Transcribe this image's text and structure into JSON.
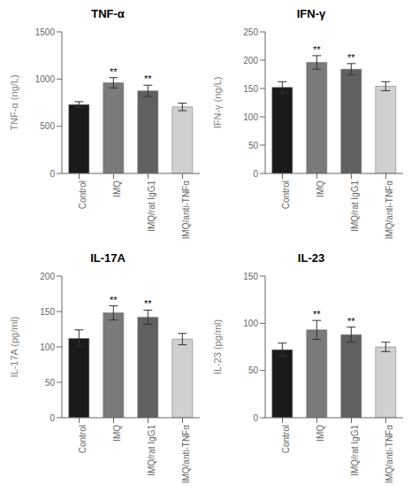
{
  "chart_data": [
    {
      "type": "bar",
      "title": "TNF-α",
      "ylabel": "TNF-α (ng/L)",
      "categories": [
        "Control",
        "IMQ",
        "IMQ/rat IgG1",
        "IMQ/anti-TNFα"
      ],
      "values": [
        730,
        960,
        875,
        705
      ],
      "errors": [
        30,
        55,
        60,
        40
      ],
      "annotations": [
        null,
        "**",
        "**",
        null
      ],
      "colors": [
        "#1a1a1a",
        "#7a7a7a",
        "#606060",
        "#d0d0d0"
      ],
      "ylim": [
        0,
        1500
      ],
      "yticks": [
        0,
        500,
        1000,
        1500
      ],
      "grid": false
    },
    {
      "type": "bar",
      "title": "IFN-γ",
      "ylabel": "IFN-γ (ng/L)",
      "categories": [
        "Control",
        "IMQ",
        "IMQ/rat IgG1",
        "IMQ/anti-TNFα"
      ],
      "values": [
        152,
        196,
        184,
        154
      ],
      "errors": [
        10,
        12,
        10,
        8
      ],
      "annotations": [
        null,
        "**",
        "**",
        null
      ],
      "colors": [
        "#1a1a1a",
        "#7a7a7a",
        "#606060",
        "#d0d0d0"
      ],
      "ylim": [
        0,
        250
      ],
      "yticks": [
        0,
        50,
        100,
        150,
        200,
        250
      ],
      "grid": false
    },
    {
      "type": "bar",
      "title": "IL-17A",
      "ylabel": "IL-17A (pg/ml)",
      "categories": [
        "Control",
        "IMQ",
        "IMQ/rat IgG1",
        "IMQ/anti-TNFα"
      ],
      "values": [
        112,
        148,
        142,
        111
      ],
      "errors": [
        12,
        10,
        10,
        8
      ],
      "annotations": [
        null,
        "**",
        "**",
        null
      ],
      "colors": [
        "#1a1a1a",
        "#7a7a7a",
        "#606060",
        "#d0d0d0"
      ],
      "ylim": [
        0,
        200
      ],
      "yticks": [
        0,
        50,
        100,
        150,
        200
      ],
      "grid": false
    },
    {
      "type": "bar",
      "title": "IL-23",
      "ylabel": "IL-23 (pg/ml)",
      "categories": [
        "Control",
        "IMQ",
        "IMQ/rat IgG1",
        "IMQ/anti-TNFα"
      ],
      "values": [
        72,
        93,
        88,
        75
      ],
      "errors": [
        7,
        10,
        8,
        5
      ],
      "annotations": [
        null,
        "**",
        "**",
        null
      ],
      "colors": [
        "#1a1a1a",
        "#7a7a7a",
        "#606060",
        "#d0d0d0"
      ],
      "ylim": [
        0,
        150
      ],
      "yticks": [
        0,
        50,
        100,
        150
      ],
      "grid": false
    }
  ]
}
